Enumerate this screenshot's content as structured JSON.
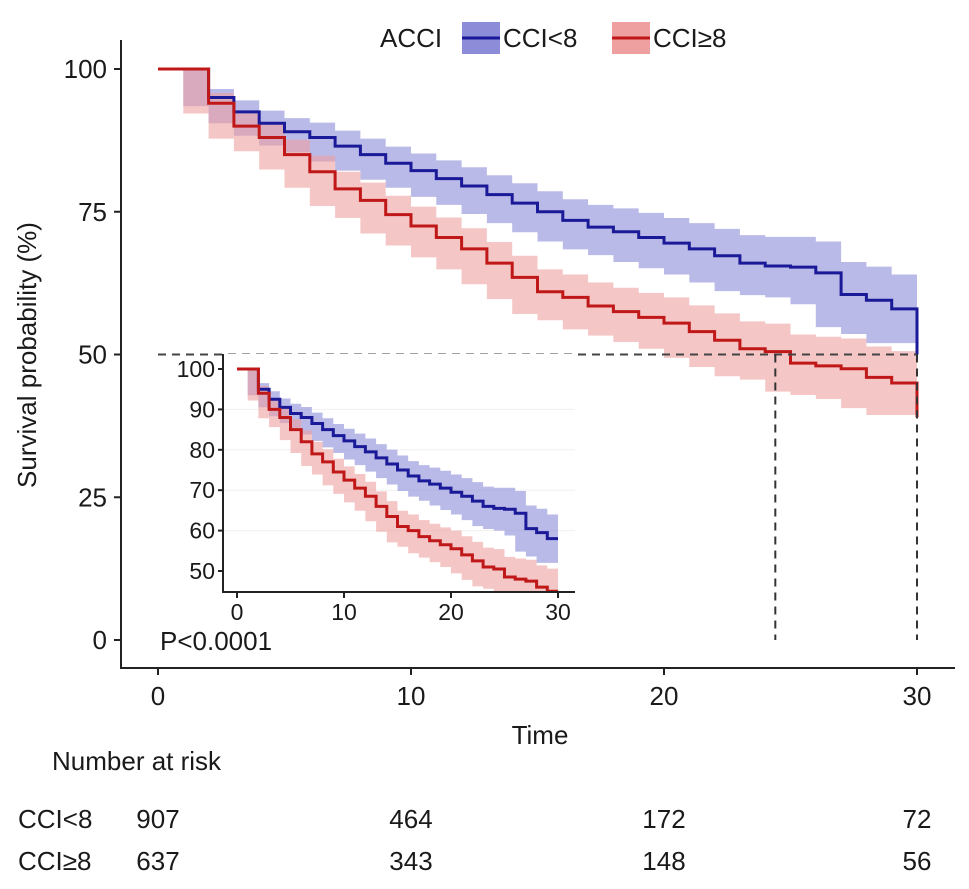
{
  "chart_data": {
    "type": "line",
    "subtype": "kaplan-meier",
    "xlabel": "Time",
    "ylabel": "Survival probability (%)",
    "xlim": [
      0,
      30
    ],
    "ylim": [
      0,
      100
    ],
    "x_ticks": [
      "0",
      "10",
      "20",
      "30"
    ],
    "y_ticks": [
      "0",
      "25",
      "50",
      "75",
      "100"
    ],
    "grid": false,
    "legend": {
      "title": "ACCI",
      "placement": "top"
    },
    "annotation": "P<0.0001",
    "median_line_y": 50,
    "median_times": [
      24.4,
      30
    ],
    "x": [
      0,
      1,
      2,
      3,
      4,
      5,
      6,
      7,
      8,
      9,
      10,
      11,
      12,
      13,
      14,
      15,
      16,
      17,
      18,
      19,
      20,
      21,
      22,
      23,
      24,
      25,
      26,
      27,
      28,
      29,
      30
    ],
    "series": [
      {
        "name": "CCI<8",
        "color": "#1a1a99",
        "band_color": "#8c8cd9",
        "values": [
          100,
          100,
          95,
          92.5,
          90.5,
          89,
          88,
          86.5,
          85,
          83.5,
          82.2,
          80.8,
          79.5,
          78,
          76.5,
          75,
          73.5,
          72.3,
          71.5,
          70.5,
          69.5,
          68.5,
          67.3,
          66,
          65.5,
          65.3,
          64.3,
          60.5,
          59.5,
          58,
          58
        ],
        "final_drop_to": 50,
        "lower": [
          100,
          100,
          93.5,
          90.5,
          88.3,
          86.6,
          85.4,
          83.8,
          82.2,
          80.6,
          79.2,
          77.6,
          76.2,
          74.6,
          73,
          71.4,
          69.8,
          68.4,
          67.4,
          66.2,
          65.1,
          64,
          62.6,
          61.1,
          60.4,
          60,
          58.8,
          54.8,
          53.6,
          52,
          52
        ],
        "upper": [
          100,
          100,
          96.5,
          94.5,
          92.7,
          91.4,
          90.6,
          89.2,
          87.8,
          86.4,
          85.2,
          84,
          82.8,
          81.4,
          80,
          78.6,
          77.2,
          76.2,
          75.6,
          74.8,
          73.9,
          73,
          72,
          70.9,
          70.6,
          70.6,
          69.8,
          66.2,
          65.4,
          64,
          64
        ]
      },
      {
        "name": "CCI≥8",
        "color": "#c01818",
        "band_color": "#eea0a0",
        "values": [
          100,
          100,
          94,
          90,
          88,
          85,
          82,
          79,
          77,
          74.5,
          72.5,
          70.5,
          68.5,
          66,
          63.5,
          61,
          60,
          58.5,
          57.5,
          56.5,
          55.5,
          54,
          52.5,
          51,
          50.5,
          48.5,
          48,
          47.5,
          46,
          45,
          45
        ],
        "final_drop_to": 39,
        "lower": [
          100,
          100,
          92.2,
          87.8,
          85.6,
          82.4,
          79.2,
          76,
          73.9,
          71.2,
          69.1,
          67,
          64.9,
          62.3,
          59.7,
          57.1,
          56,
          54.4,
          53.3,
          52.2,
          51,
          49.4,
          47.8,
          46.2,
          45.6,
          43.5,
          42.9,
          42.2,
          40.6,
          39.4,
          39.4
        ],
        "upper": [
          100,
          100,
          95.8,
          92.2,
          90.4,
          87.6,
          84.8,
          82,
          80.1,
          77.8,
          75.9,
          74,
          72.1,
          69.7,
          67.3,
          64.9,
          64,
          62.6,
          61.7,
          60.8,
          60,
          58.6,
          57.2,
          55.8,
          55.4,
          53.5,
          53.1,
          52.8,
          51.4,
          50.6,
          50.6
        ]
      }
    ],
    "inset": {
      "xlim": [
        0,
        30
      ],
      "ylim": [
        50,
        100
      ],
      "x_ticks": [
        "0",
        "10",
        "20",
        "30"
      ],
      "y_ticks": [
        "50",
        "60",
        "70",
        "80",
        "90",
        "100"
      ]
    },
    "risk_table": {
      "title": "Number at risk",
      "times": [
        0,
        10,
        20,
        30
      ],
      "rows": [
        {
          "label": "CCI<8",
          "values": [
            "907",
            "464",
            "172",
            "72"
          ]
        },
        {
          "label": "CCI≥8",
          "values": [
            "637",
            "343",
            "148",
            "56"
          ]
        }
      ]
    }
  }
}
